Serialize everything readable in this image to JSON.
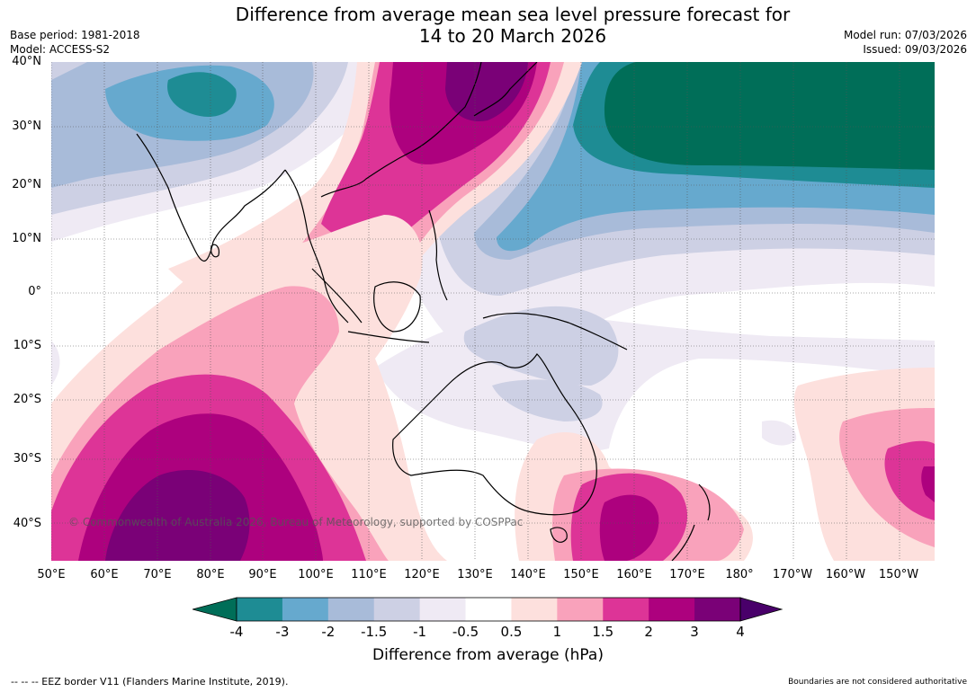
{
  "title": {
    "line1": "Difference from average mean sea level pressure forecast for",
    "line2": "14 to 20 March 2026"
  },
  "meta": {
    "base_period": "Base period: 1981-2018",
    "model": "Model: ACCESS-S2",
    "model_run": "Model run: 07/03/2026",
    "issued": "Issued: 09/03/2026"
  },
  "map": {
    "lat_labels": [
      "40°N",
      "30°N",
      "20°N",
      "10°N",
      "0°",
      "10°S",
      "20°S",
      "30°S",
      "40°S"
    ],
    "lon_labels": [
      "50°E",
      "60°E",
      "70°E",
      "80°E",
      "90°E",
      "100°E",
      "110°E",
      "120°E",
      "130°E",
      "140°E",
      "150°E",
      "160°E",
      "170°E",
      "180°",
      "170°W",
      "160°W",
      "150°W"
    ],
    "copyright": "© Commonwealth of Australia 2026, Bureau of Meteorology, supported by COSPPac"
  },
  "colorbar": {
    "ticks": [
      "-4",
      "-3",
      "-2",
      "-1.5",
      "-1",
      "-0.5",
      "0.5",
      "1",
      "1.5",
      "2",
      "3",
      "4"
    ],
    "colors": [
      "#1e8c94",
      "#66a9ce",
      "#a8bbd9",
      "#cdd0e4",
      "#efeaf4",
      "#ffffff",
      "#fde0dd",
      "#f9a2bb",
      "#dd3497",
      "#ad017e",
      "#7a0177"
    ],
    "under_color": "#006e58",
    "over_color": "#49006a",
    "label": "Difference from average (hPa)"
  },
  "footer": {
    "eez": "--  --  -- EEZ border V11 (Flanders Marine Institute, 2019).",
    "boundaries": "Boundaries are not considered authoritative"
  }
}
